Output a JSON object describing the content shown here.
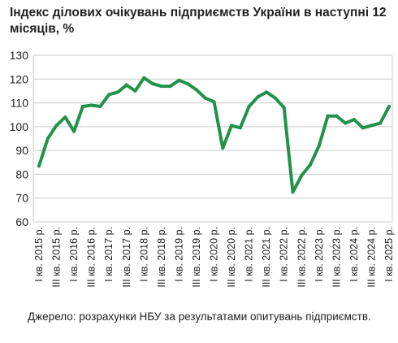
{
  "title": "Індекс ділових очікувань підприємств України в наступні 12 місяців, %",
  "source": "Джерело:  розрахунки  НБУ за результатами опитувань підприємств.",
  "chart_data": {
    "type": "line",
    "line_color": "#22924a",
    "grid_color": "#cccccc",
    "grid": true,
    "ylim": [
      60,
      130
    ],
    "yticks": [
      60,
      70,
      80,
      90,
      100,
      110,
      120,
      130
    ],
    "x_tick_labels": [
      "I кв. 2015 р.",
      "III кв. 2015 р.",
      "I кв. 2016 р.",
      "III кв. 2016 р.",
      "I кв. 2017 р.",
      "III кв. 2017 р.",
      "I кв. 2018 р.",
      "III кв. 2018 р.",
      "I кв. 2019 р.",
      "III кв. 2019 р.",
      "I кв. 2020 р.",
      "III кв. 2020 р.",
      "I кв. 2021 р.",
      "III кв. 2021 р.",
      "I кв. 2022 р.",
      "III кв. 2022 р.",
      "I кв. 2023 р.",
      "III кв. 2023 р.",
      "I кв. 2024 р.",
      "III кв. 2024 р.",
      "I кв. 2025 р."
    ],
    "values": [
      83.5,
      95,
      100.5,
      104,
      98,
      108.5,
      109,
      108.5,
      113.5,
      114.5,
      117.5,
      115,
      120.5,
      118,
      117,
      117,
      119.5,
      118,
      115.5,
      112,
      110.5,
      91,
      100.5,
      99.5,
      108.5,
      112.5,
      114.5,
      112,
      108,
      72.5,
      79.5,
      84,
      92,
      104.5,
      104.5,
      101.5,
      103,
      99.5,
      100.5,
      101.5,
      108.5
    ]
  }
}
